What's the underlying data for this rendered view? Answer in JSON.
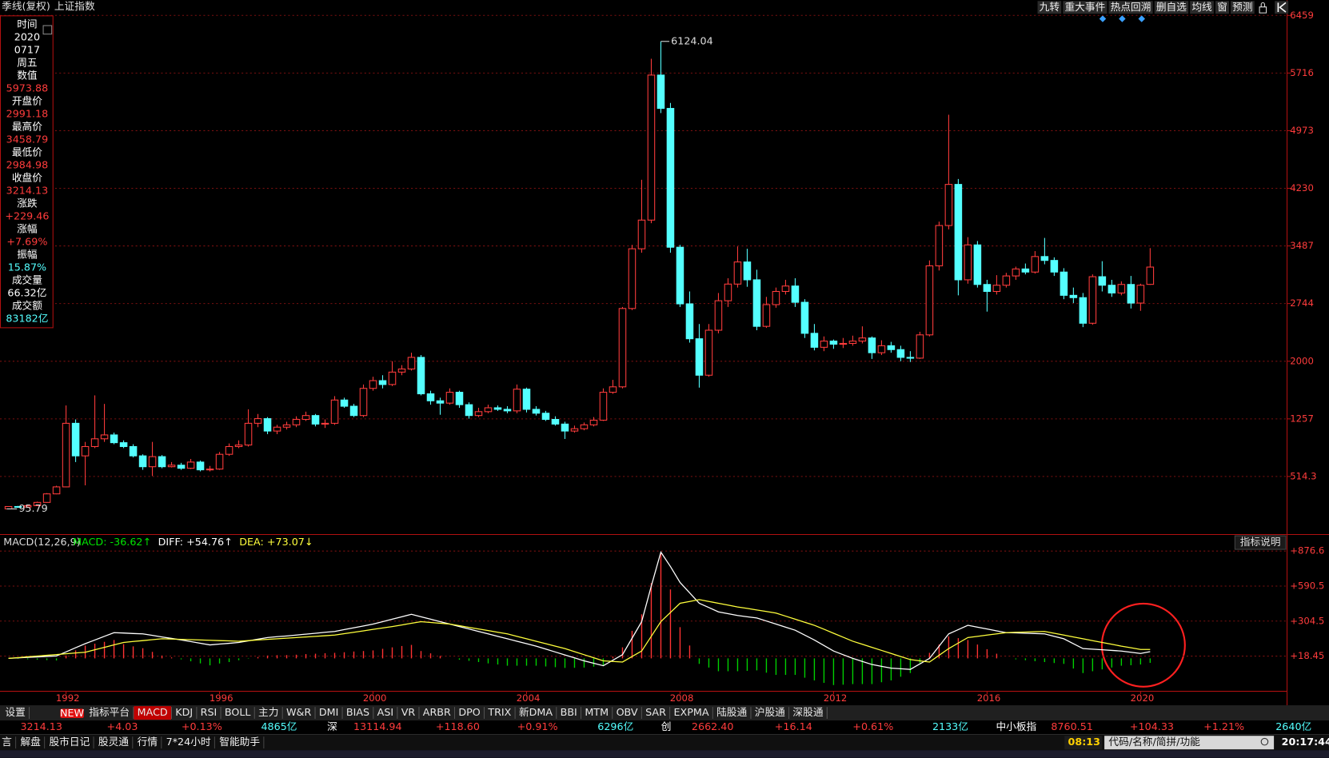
{
  "chart_data": {
    "type": "candlestick",
    "title": "季线(复权)",
    "subtitle": "上证指数",
    "categories": [
      null,
      null,
      null,
      null,
      null,
      null,
      "1992",
      null,
      null,
      null,
      null,
      null,
      null,
      null,
      null,
      null,
      null,
      null,
      null,
      null,
      null,
      null,
      "1996",
      null,
      null,
      null,
      null,
      null,
      null,
      null,
      null,
      null,
      null,
      null,
      null,
      null,
      null,
      null,
      "2000",
      null,
      null,
      null,
      null,
      null,
      null,
      null,
      null,
      null,
      null,
      null,
      null,
      null,
      null,
      null,
      "2004",
      null,
      null,
      null,
      null,
      null,
      null,
      null,
      null,
      null,
      null,
      null,
      null,
      null,
      null,
      null,
      "2008",
      null,
      null,
      null,
      null,
      null,
      null,
      null,
      null,
      null,
      null,
      null,
      null,
      null,
      null,
      null,
      "2012",
      null,
      null,
      null,
      null,
      null,
      null,
      null,
      null,
      null,
      null,
      null,
      null,
      null,
      null,
      null,
      "2016",
      null,
      null,
      null,
      null,
      null,
      null,
      null,
      null,
      null,
      null,
      null,
      null,
      null,
      null,
      null,
      "2020",
      null
    ],
    "open": [
      96,
      127,
      120,
      138,
      180,
      290,
      380,
      1200,
      780,
      900,
      1000,
      1050,
      950,
      900,
      780,
      640,
      770,
      640,
      660,
      620,
      700,
      600,
      610,
      800,
      900,
      920,
      1200,
      1260,
      1100,
      1150,
      1180,
      1250,
      1300,
      1190,
      1200,
      1500,
      1420,
      1300,
      1650,
      1750,
      1700,
      1860,
      1900,
      2050,
      1580,
      1490,
      1460,
      1600,
      1440,
      1300,
      1350,
      1400,
      1380,
      1360,
      1640,
      1380,
      1330,
      1250,
      1190,
      1100,
      1130,
      1180,
      1240,
      1600,
      1670,
      2680,
      3450,
      3820,
      5690,
      5260,
      3470,
      2740,
      2290,
      1820,
      2400,
      2780,
      2995,
      3280,
      3050,
      2450,
      2730,
      2900,
      2970,
      2760,
      2360,
      2180,
      2260,
      2220,
      2230,
      2260,
      2300,
      2110,
      2200,
      2150,
      2050,
      2040,
      2340,
      3230,
      3750,
      4280,
      3050,
      3500,
      2990,
      2900,
      2980,
      3100,
      3190,
      3150,
      3350,
      3300,
      3150,
      2850,
      2820,
      2490,
      3090,
      2980,
      2880,
      2990,
      2750,
      2991.18
    ],
    "high": [
      130,
      135,
      140,
      190,
      300,
      395,
      1430,
      1250,
      960,
      1560,
      1450,
      1080,
      980,
      930,
      800,
      960,
      790,
      700,
      690,
      740,
      720,
      650,
      830,
      940,
      980,
      1380,
      1320,
      1280,
      1180,
      1220,
      1290,
      1350,
      1320,
      1250,
      1550,
      1530,
      1450,
      1700,
      1800,
      1820,
      2000,
      1950,
      2110,
      2080,
      1620,
      1530,
      1650,
      1620,
      1470,
      1400,
      1440,
      1430,
      1420,
      1700,
      1660,
      1420,
      1360,
      1290,
      1220,
      1170,
      1210,
      1280,
      1650,
      1760,
      2700,
      3500,
      4340,
      5900,
      6124.04,
      5330,
      3500,
      2900,
      2480,
      2480,
      2880,
      3070,
      3480,
      3450,
      3180,
      2830,
      2950,
      3050,
      3070,
      2800,
      2480,
      2320,
      2280,
      2300,
      2330,
      2450,
      2320,
      2270,
      2250,
      2200,
      2130,
      2380,
      3300,
      3800,
      5178,
      4350,
      3600,
      3550,
      3050,
      3110,
      3140,
      3220,
      3260,
      3420,
      3590,
      3340,
      3200,
      2950,
      2880,
      3120,
      3290,
      3050,
      3030,
      3100,
      3000,
      3458.79
    ],
    "low": [
      95.79,
      110,
      115,
      135,
      175,
      285,
      375,
      700,
      400,
      880,
      960,
      930,
      880,
      760,
      600,
      520,
      620,
      630,
      600,
      610,
      580,
      580,
      600,
      780,
      880,
      900,
      1150,
      1060,
      1060,
      1120,
      1150,
      1230,
      1160,
      1140,
      1180,
      1400,
      1280,
      1280,
      1620,
      1650,
      1680,
      1820,
      1880,
      1560,
      1440,
      1310,
      1440,
      1400,
      1260,
      1280,
      1330,
      1360,
      1330,
      1330,
      1340,
      1300,
      1230,
      1170,
      998,
      1080,
      1110,
      1160,
      1230,
      1580,
      1650,
      2660,
      3400,
      3780,
      5200,
      3400,
      2700,
      2240,
      1660,
      1800,
      2360,
      2700,
      2950,
      2960,
      2400,
      2430,
      2690,
      2860,
      2700,
      2300,
      2140,
      2130,
      2160,
      2170,
      2200,
      2230,
      2030,
      2080,
      2110,
      2000,
      1990,
      2030,
      2320,
      3170,
      3700,
      2850,
      3000,
      2950,
      2640,
      2860,
      2950,
      3050,
      3120,
      3130,
      3250,
      3100,
      2800,
      2750,
      2440,
      2470,
      2900,
      2830,
      2850,
      2680,
      2650,
      2984.98
    ],
    "close": [
      127,
      120,
      138,
      180,
      290,
      380,
      1200,
      780,
      900,
      1000,
      1050,
      950,
      900,
      780,
      640,
      770,
      640,
      660,
      620,
      700,
      600,
      610,
      800,
      900,
      920,
      1200,
      1260,
      1100,
      1150,
      1180,
      1250,
      1300,
      1190,
      1200,
      1500,
      1420,
      1300,
      1650,
      1750,
      1700,
      1860,
      1900,
      2050,
      1580,
      1490,
      1460,
      1600,
      1440,
      1300,
      1350,
      1400,
      1380,
      1360,
      1640,
      1380,
      1330,
      1250,
      1190,
      1100,
      1130,
      1180,
      1240,
      1600,
      1670,
      2680,
      3450,
      3820,
      5690,
      5260,
      3470,
      2740,
      2290,
      1820,
      2400,
      2780,
      2995,
      3280,
      3050,
      2450,
      2730,
      2900,
      2970,
      2760,
      2360,
      2180,
      2260,
      2220,
      2230,
      2260,
      2300,
      2110,
      2200,
      2150,
      2050,
      2040,
      2340,
      3230,
      3750,
      4280,
      3050,
      3500,
      2990,
      2900,
      2980,
      3100,
      3190,
      3150,
      3350,
      3300,
      3150,
      2850,
      2820,
      2490,
      3090,
      2980,
      2880,
      2990,
      2750,
      2980,
      3214.13
    ],
    "up_color": "#ff3c3c",
    "down_color": "#54ffff",
    "ylim": [
      -228.7,
      6459
    ],
    "yticks": [
      514.3,
      1257,
      2000,
      2744,
      3487,
      4230,
      4973,
      5716,
      6459
    ],
    "grid": true,
    "indicator": {
      "type": "macd",
      "title": "MACD(12,26,9)",
      "legend": [
        {
          "text": "MACD: -36.62↑",
          "color": "#00e600"
        },
        {
          "text": "DIFF: +54.76↑",
          "color": "#ffffff"
        },
        {
          "text": "DEA: +73.07↓",
          "color": "#ffff3c"
        }
      ],
      "ylim": [
        -265.6,
        876.6
      ],
      "yticks": [
        {
          "value": 18.45,
          "label": "+18.45"
        },
        {
          "value": 304.5,
          "label": "+304.5"
        },
        {
          "value": 590.5,
          "label": "+590.5"
        },
        {
          "value": 876.6,
          "label": "+876.6"
        }
      ],
      "series": [
        {
          "color": "#ffffff",
          "values": [
            0,
            4,
            8,
            12,
            16,
            20,
            53,
            87,
            120,
            150,
            180,
            210,
            207,
            203,
            200,
            188,
            175,
            163,
            150,
            137,
            123,
            110,
            117,
            123,
            130,
            143,
            157,
            170,
            177,
            183,
            190,
            198,
            205,
            213,
            220,
            235,
            250,
            265,
            280,
            300,
            320,
            340,
            360,
            340,
            320,
            300,
            280,
            260,
            240,
            220,
            200,
            180,
            160,
            140,
            120,
            100,
            76,
            52,
            28,
            4,
            -20,
            -40,
            -60,
            -15,
            30,
            165,
            300,
            590,
            868,
            750,
            620,
            535,
            450,
            415,
            380,
            365,
            350,
            340,
            330,
            305,
            280,
            255,
            230,
            190,
            150,
            105,
            60,
            30,
            0,
            -25,
            -50,
            -65,
            -80,
            -85,
            -90,
            -45,
            0,
            100,
            200,
            235,
            270,
            255,
            240,
            225,
            210,
            208,
            205,
            203,
            200,
            180,
            160,
            120,
            80,
            75,
            70,
            65,
            60,
            50,
            40,
            54.76
          ]
        },
        {
          "color": "#ffff3c",
          "values": [
            0,
            6,
            13,
            19,
            25,
            31,
            38,
            44,
            50,
            70,
            90,
            110,
            130,
            138,
            145,
            153,
            160,
            158,
            155,
            153,
            150,
            148,
            145,
            143,
            140,
            145,
            150,
            155,
            160,
            165,
            170,
            175,
            180,
            185,
            190,
            202,
            213,
            225,
            237,
            248,
            260,
            273,
            287,
            300,
            293,
            287,
            280,
            267,
            253,
            240,
            227,
            213,
            200,
            180,
            160,
            140,
            120,
            100,
            80,
            55,
            30,
            5,
            -20,
            -25,
            -30,
            15,
            60,
            180,
            300,
            375,
            450,
            465,
            480,
            465,
            450,
            435,
            420,
            408,
            395,
            383,
            370,
            345,
            320,
            295,
            270,
            238,
            205,
            173,
            140,
            115,
            90,
            65,
            40,
            15,
            -10,
            -20,
            -30,
            25,
            80,
            125,
            170,
            180,
            190,
            200,
            210,
            213,
            215,
            218,
            220,
            205,
            190,
            175,
            160,
            145,
            130,
            115,
            100,
            87,
            73,
            73.07
          ]
        }
      ],
      "bars": {
        "up_color": "#ff3232",
        "down_color": "#00d000",
        "values": [
          0,
          -3,
          -8,
          -11,
          -14,
          -17,
          23,
          65,
          105,
          120,
          135,
          150,
          116,
          98,
          83,
          53,
          23,
          8,
          -8,
          -24,
          -41,
          -57,
          -42,
          -30,
          -15,
          -3,
          11,
          23,
          26,
          27,
          30,
          35,
          38,
          42,
          45,
          50,
          56,
          60,
          65,
          78,
          90,
          101,
          110,
          60,
          41,
          20,
          0,
          -11,
          -20,
          -30,
          -41,
          -50,
          -60,
          -60,
          -60,
          -60,
          -66,
          -72,
          -78,
          -77,
          -75,
          -68,
          -60,
          15,
          90,
          225,
          360,
          615,
          860,
          563,
          255,
          105,
          -45,
          -75,
          -105,
          -105,
          -105,
          -102,
          -98,
          -117,
          -135,
          -135,
          -135,
          -158,
          -180,
          -200,
          -218,
          -215,
          -210,
          -210,
          -210,
          -195,
          -180,
          -150,
          -120,
          -38,
          45,
          113,
          180,
          165,
          150,
          113,
          75,
          38,
          0,
          -8,
          -15,
          -23,
          -30,
          -38,
          -45,
          -83,
          -120,
          -105,
          -90,
          -75,
          -60,
          -56,
          -50,
          -36.62
        ]
      }
    }
  },
  "info_panel": [
    {
      "text": "时间",
      "color": "#ffffff"
    },
    {
      "text": "2020",
      "color": "#ffffff"
    },
    {
      "text": "0717",
      "color": "#ffffff"
    },
    {
      "text": "周五",
      "color": "#ffffff"
    },
    {
      "text": "数值",
      "color": "#ffffff"
    },
    {
      "text": "5973.88",
      "color": "#ff3c3c"
    },
    {
      "text": "开盘价",
      "color": "#ffffff"
    },
    {
      "text": "2991.18",
      "color": "#ff3c3c"
    },
    {
      "text": "最高价",
      "color": "#ffffff"
    },
    {
      "text": "3458.79",
      "color": "#ff3c3c"
    },
    {
      "text": "最低价",
      "color": "#ffffff"
    },
    {
      "text": "2984.98",
      "color": "#ff3c3c"
    },
    {
      "text": "收盘价",
      "color": "#ffffff"
    },
    {
      "text": "3214.13",
      "color": "#ff3c3c"
    },
    {
      "text": "涨跌",
      "color": "#ffffff"
    },
    {
      "text": "+229.46",
      "color": "#ff3c3c"
    },
    {
      "text": "涨幅",
      "color": "#ffffff"
    },
    {
      "text": "+7.69%",
      "color": "#ff3c3c"
    },
    {
      "text": "振幅",
      "color": "#ffffff"
    },
    {
      "text": "15.87%",
      "color": "#54ffff"
    },
    {
      "text": "成交量",
      "color": "#ffffff"
    },
    {
      "text": "66.32亿",
      "color": "#ffffff"
    },
    {
      "text": "成交额",
      "color": "#ffffff"
    },
    {
      "text": "83182亿",
      "color": "#54ffff"
    }
  ],
  "toolbar": [
    "九转",
    "重大事件",
    "热点回溯",
    "删自选",
    "均线",
    "窗",
    "预测"
  ],
  "indicator_help": "指标说明",
  "tabs": [
    "设置",
    "指标平台",
    "MACD",
    "KDJ",
    "RSI",
    "BOLL",
    "主力",
    "W&R",
    "DMI",
    "BIAS",
    "ASI",
    "VR",
    "ARBR",
    "DPO",
    "TRIX",
    "新DMA",
    "BBI",
    "MTM",
    "OBV",
    "SAR",
    "EXPMA",
    "陆股通",
    "沪股通",
    "深股通"
  ],
  "new_badge": "NEW",
  "active_tab": 2,
  "status_row": [
    {
      "text": "3214.13",
      "color": "#ff3c3c"
    },
    {
      "text": "+4.03",
      "color": "#ff3c3c"
    },
    {
      "text": "+0.13%",
      "color": "#ff3c3c"
    },
    {
      "text": "4865亿",
      "color": "#54ffff"
    },
    {
      "text": "深",
      "color": "#ffffff"
    },
    {
      "text": "13114.94",
      "color": "#ff3c3c"
    },
    {
      "text": "+118.60",
      "color": "#ff3c3c"
    },
    {
      "text": "+0.91%",
      "color": "#ff3c3c"
    },
    {
      "text": "6296亿",
      "color": "#54ffff"
    },
    {
      "text": "创",
      "color": "#ffffff"
    },
    {
      "text": "2662.40",
      "color": "#ff3c3c"
    },
    {
      "text": "+16.14",
      "color": "#ff3c3c"
    },
    {
      "text": "+0.61%",
      "color": "#ff3c3c"
    },
    {
      "text": "2133亿",
      "color": "#54ffff"
    },
    {
      "text": "中小板指",
      "color": "#ffffff"
    },
    {
      "text": "8760.51",
      "color": "#ff3c3c"
    },
    {
      "text": "+104.33",
      "color": "#ff3c3c"
    },
    {
      "text": "+1.21%",
      "color": "#ff3c3c"
    },
    {
      "text": "2640亿",
      "color": "#54ffff"
    }
  ],
  "bottom_bar": {
    "links": [
      "言",
      "解盘",
      "股市日记",
      "股灵通",
      "行情",
      "7*24小时",
      "智能助手"
    ],
    "clock": "08:13",
    "search": "代码/名称/简拼/功能",
    "time": "20:17:44"
  }
}
